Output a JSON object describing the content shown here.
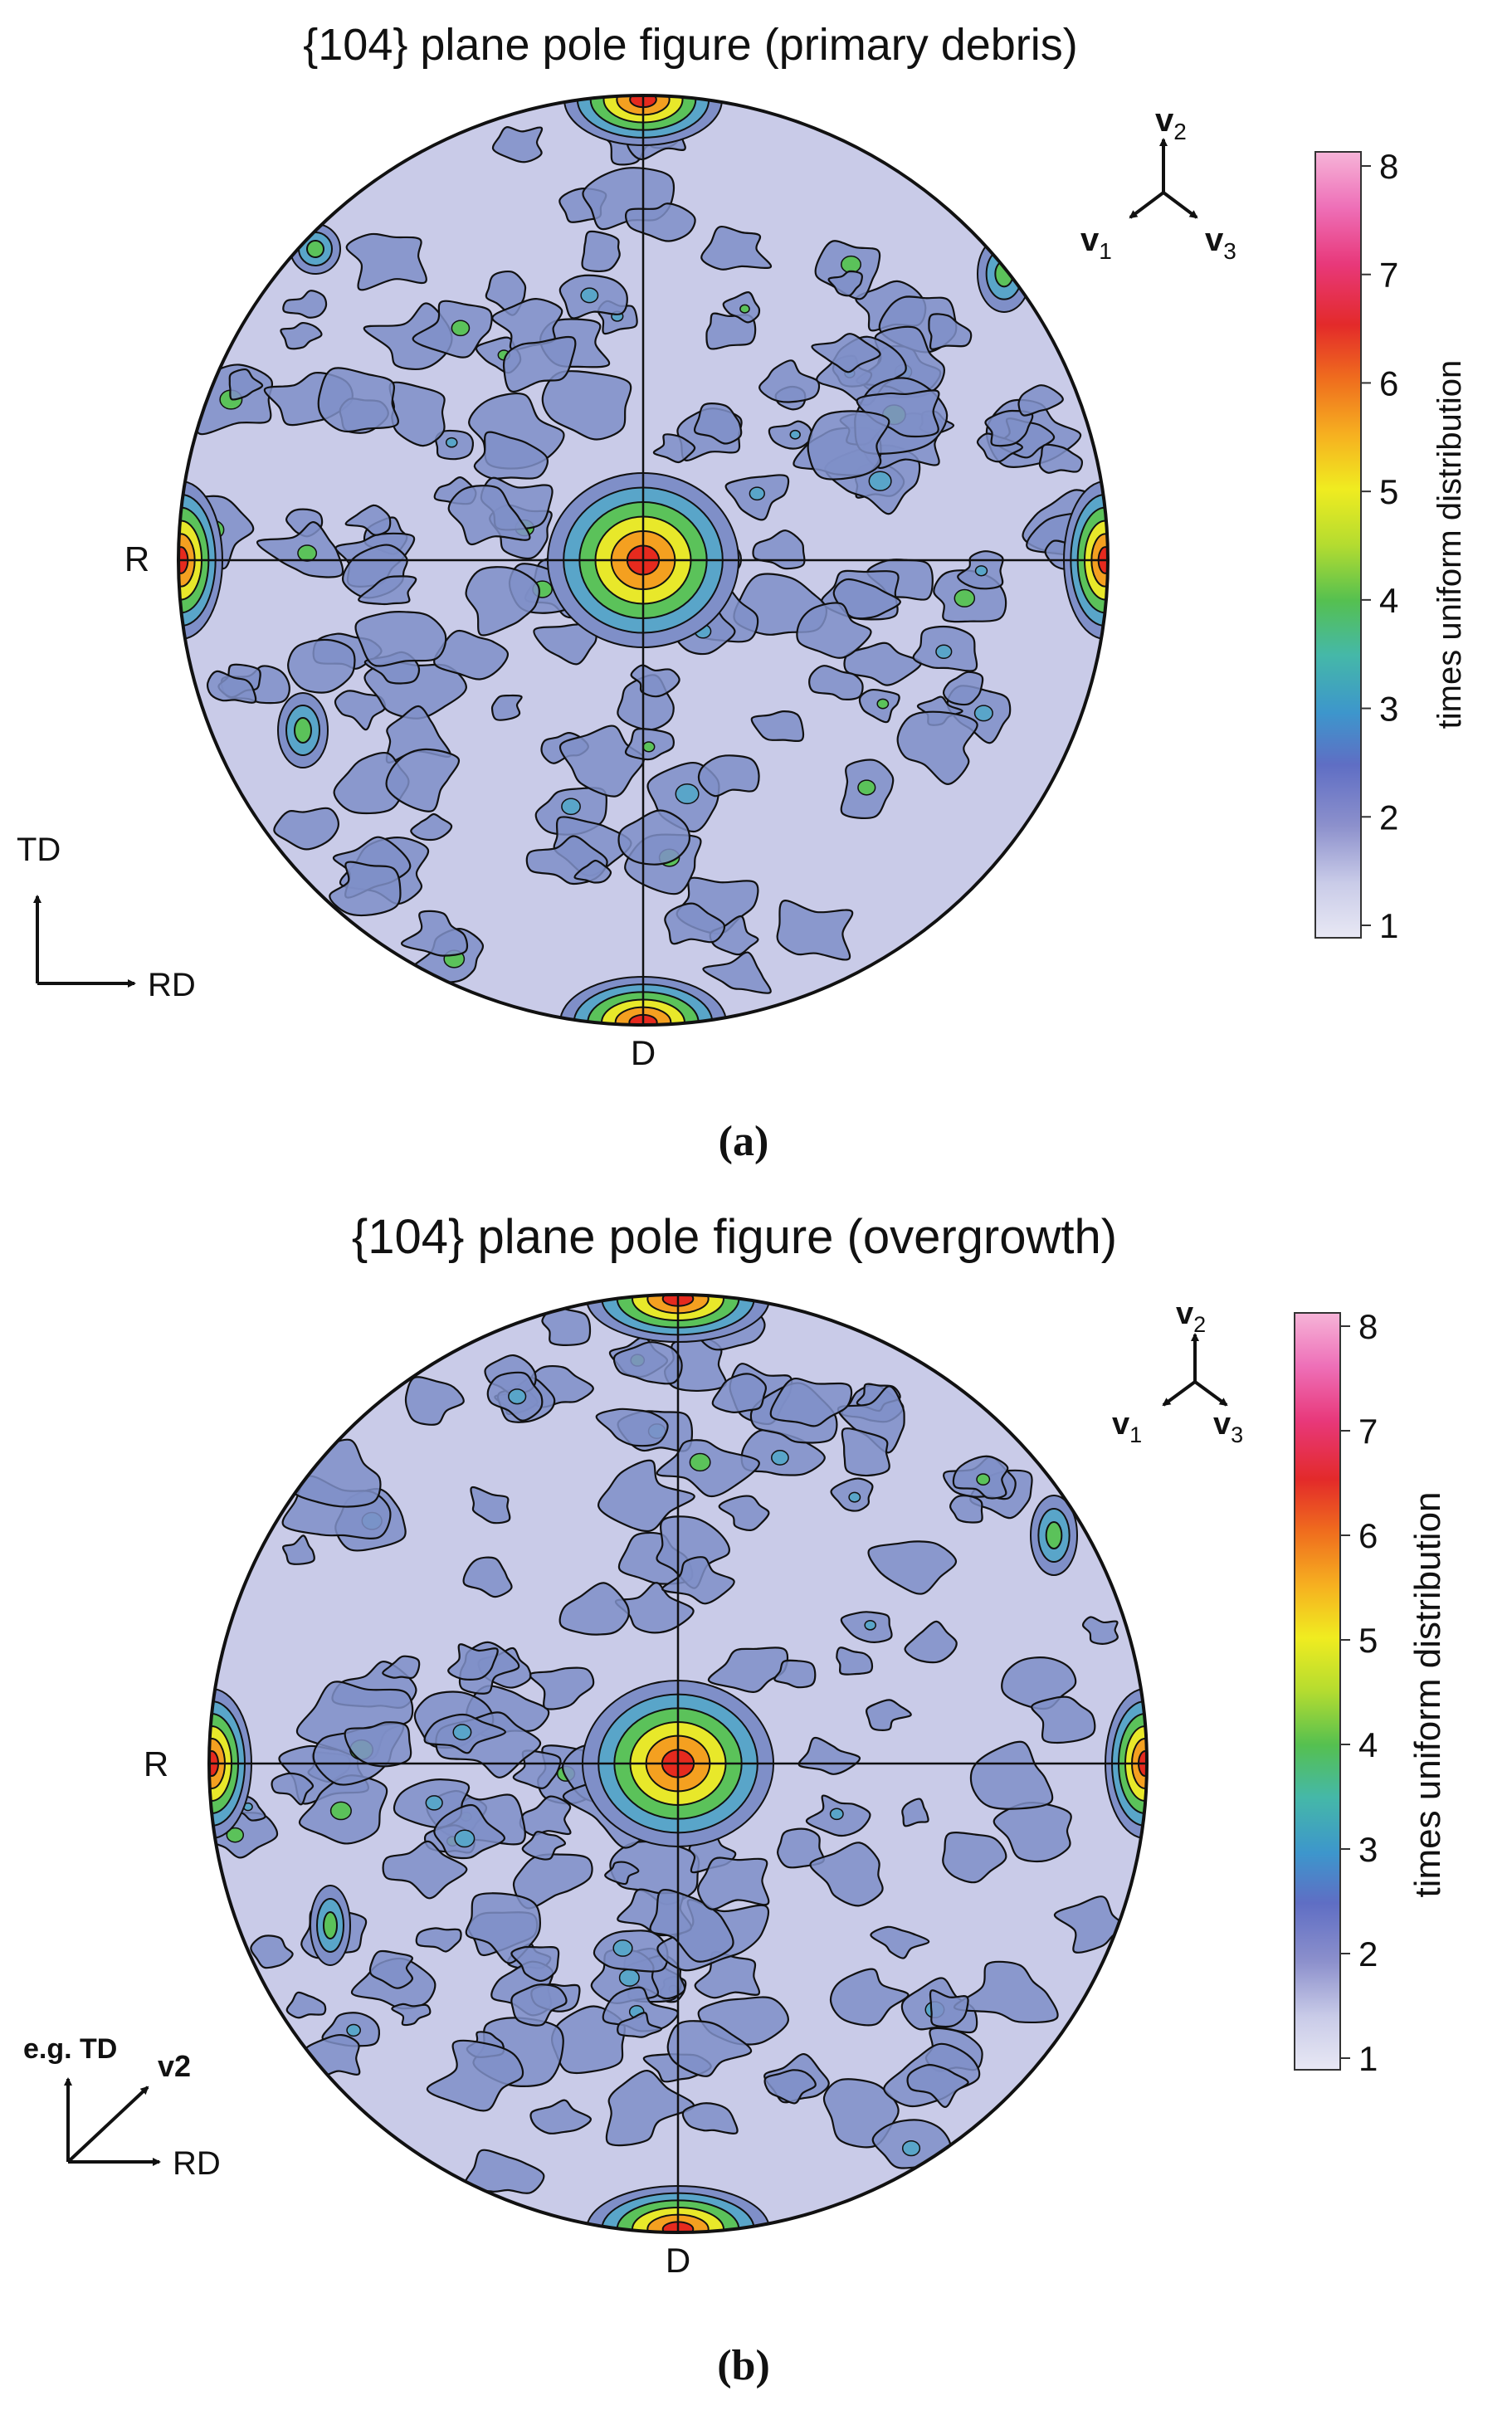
{
  "colors": {
    "background": "#c9cbe8",
    "level2": "#7f8fc8",
    "level3": "#59a5c9",
    "level4": "#5bc25a",
    "level5": "#e8e82a",
    "level6": "#f4a020",
    "level7": "#e62a1e",
    "level8": "#ec4aa6",
    "contour": "#111111"
  },
  "panels": [
    {
      "title": "{104} plane pole figure (primary debris)",
      "caption": "(a)",
      "left_label": "R",
      "bottom_label": "D",
      "crystal_axes": {
        "v1": "v",
        "v1_sub": "1",
        "v2": "v",
        "v2_sub": "2",
        "v3": "v",
        "v3_sub": "3"
      },
      "sample_axes": {
        "vertical": "TD",
        "horizontal": "RD",
        "diagonal": ""
      },
      "colorbar": {
        "ticks": [
          "1",
          "2",
          "3",
          "4",
          "5",
          "6",
          "7",
          "8"
        ],
        "title": "times uniform distribution"
      }
    },
    {
      "title": "{104} plane pole figure (overgrowth)",
      "caption": "(b)",
      "left_label": "R",
      "bottom_label": "D",
      "crystal_axes": {
        "v1": "v",
        "v1_sub": "1",
        "v2": "v",
        "v2_sub": "2",
        "v3": "v",
        "v3_sub": "3"
      },
      "sample_axes": {
        "vertical": "e.g. TD",
        "horizontal": "RD",
        "diagonal": "v2"
      },
      "colorbar": {
        "ticks": [
          "1",
          "2",
          "3",
          "4",
          "5",
          "6",
          "7",
          "8"
        ],
        "title": "times uniform distribution"
      }
    }
  ]
}
